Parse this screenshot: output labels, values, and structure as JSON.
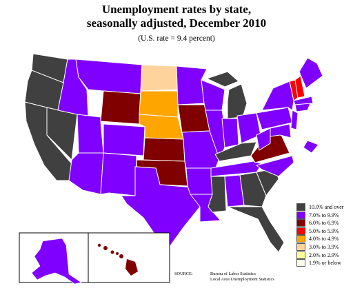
{
  "title_line1": "Unemployment rates by state,",
  "title_line2": "seasonally adjusted, December 2010",
  "subtitle": "(U.S. rate = 9.4 percent)",
  "legend": [
    {
      "label": "10.0% and over",
      "color": "#404040"
    },
    {
      "label": "7.0% to 9.9%",
      "color": "#7f00ff"
    },
    {
      "label": "6.0% to 6.9%",
      "color": "#800000"
    },
    {
      "label": "5.0% to 5.9%",
      "color": "#ff0000"
    },
    {
      "label": "4.0% to 4.9%",
      "color": "#ffa500"
    },
    {
      "label": "3.0% to 3.9%",
      "color": "#ffd39b"
    },
    {
      "label": "2.0% to 2.9%",
      "color": "#ffff99"
    },
    {
      "label": "1.9% or below",
      "color": "#fffff0"
    }
  ],
  "source": {
    "key": "SOURCE:",
    "line1": "Bureau of Labor Statistics",
    "line2": "Local Area Unemployment Statistics"
  }
}
